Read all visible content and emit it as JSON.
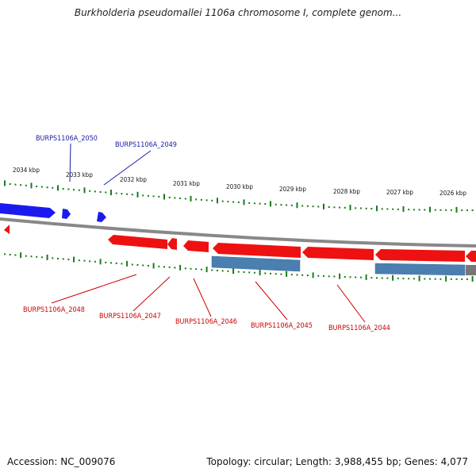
{
  "title": "Burkholderia pseudomallei 1106a chromosome I, complete genom...",
  "footer": {
    "accession": "Accession: NC_009076",
    "topology": "Topology: circular; Length: 3,988,455 bp; Genes: 4,077"
  },
  "colors": {
    "forward_gene": "#1a1aee",
    "reverse_gene": "#ee1111",
    "rna_feature": "#4a7fb0",
    "tick": "#1a7a1a",
    "backbone": "#888888",
    "forward_label": "#1a1aaa",
    "reverse_label": "#cc0000"
  },
  "scale": {
    "ticks": [
      "2034 kbp",
      "2033 kbp",
      "2032 kbp",
      "2031 kbp",
      "2030 kbp",
      "2029 kbp",
      "2028 kbp",
      "2027 kbp",
      "2026 kbp"
    ]
  },
  "labels": {
    "forward": [
      "BURPS1106A_2050",
      "BURPS1106A_2049"
    ],
    "reverse": [
      "BURPS1106A_2048",
      "BURPS1106A_2047",
      "BURPS1106A_2046",
      "BURPS1106A_2045",
      "BURPS1106A_2044"
    ]
  }
}
